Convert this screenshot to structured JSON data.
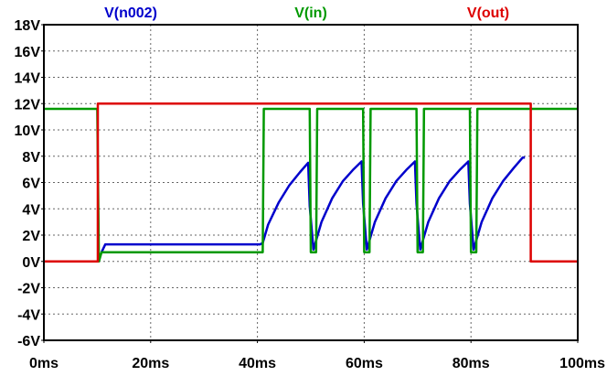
{
  "chart_data": {
    "type": "line",
    "x_unit": "ms",
    "y_unit": "V",
    "xlim": [
      0,
      100
    ],
    "ylim": [
      -6,
      18
    ],
    "x_ticks": [
      0,
      20,
      40,
      60,
      80,
      100
    ],
    "y_ticks": [
      18,
      16,
      14,
      12,
      10,
      8,
      6,
      4,
      2,
      0,
      -2,
      -4,
      -6
    ],
    "x_tick_labels": [
      "0ms",
      "20ms",
      "40ms",
      "60ms",
      "80ms",
      "100ms"
    ],
    "y_tick_labels": [
      "18V",
      "16V",
      "14V",
      "12V",
      "10V",
      "8V",
      "6V",
      "4V",
      "2V",
      "0V",
      "-2V",
      "-4V",
      "-6V"
    ],
    "grid": true,
    "legend_position": "top",
    "series": [
      {
        "name": "V(n002)",
        "color": "#0000cc",
        "x": [
          10.8,
          11.5,
          40.5,
          41,
          42,
          44,
          46,
          48,
          49.5,
          49.8,
          50.5,
          51,
          52,
          54,
          56,
          58,
          59.5,
          59.8,
          60.5,
          61,
          62,
          64,
          66,
          68,
          69.5,
          69.8,
          70.5,
          71,
          72,
          74,
          76,
          78,
          79.5,
          79.8,
          80.5,
          81,
          82,
          84,
          86,
          88,
          89.7,
          90.1
        ],
        "y": [
          0.7,
          1.3,
          1.3,
          1.4,
          2.8,
          4.5,
          5.8,
          6.8,
          7.5,
          4.2,
          0.9,
          1.6,
          3.0,
          4.8,
          6.1,
          7.0,
          7.6,
          4.4,
          0.9,
          1.6,
          3.0,
          4.8,
          6.1,
          7.0,
          7.6,
          4.4,
          0.9,
          1.6,
          3.0,
          4.8,
          6.1,
          7.0,
          7.6,
          4.4,
          0.9,
          1.6,
          3.0,
          4.8,
          6.1,
          7.1,
          7.9,
          7.9
        ]
      },
      {
        "name": "V(in)",
        "color": "#009900",
        "x": [
          0,
          10,
          10.3,
          10.8,
          40.5,
          41,
          41.2,
          49.8,
          50,
          51,
          51.2,
          59.8,
          60,
          61,
          61.2,
          69.8,
          70,
          71,
          71.2,
          79.8,
          80,
          81,
          81.2,
          90,
          100
        ],
        "y": [
          11.6,
          11.6,
          0,
          0.7,
          0.7,
          0.7,
          11.6,
          11.6,
          0.7,
          0.7,
          11.6,
          11.6,
          0.7,
          0.7,
          11.6,
          11.6,
          0.7,
          0.7,
          11.6,
          11.6,
          0.7,
          0.7,
          11.6,
          11.6,
          11.6
        ]
      },
      {
        "name": "V(out)",
        "color": "#dd0000",
        "x": [
          0,
          10.1,
          10.1,
          91.2,
          91.2,
          100
        ],
        "y": [
          0,
          0,
          12,
          12,
          0,
          0
        ]
      }
    ]
  }
}
